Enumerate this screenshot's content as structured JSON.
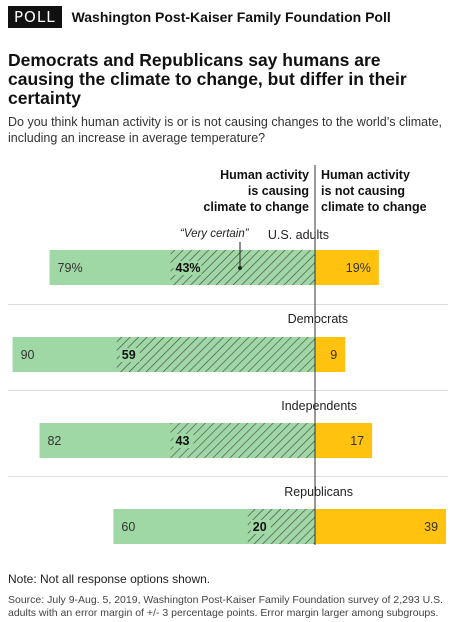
{
  "header": {
    "badge": "POLL",
    "source": "Washington Post-Kaiser Family Foundation Poll"
  },
  "title": "Democrats and Republicans say humans are causing the climate to change, but differ in their certainty",
  "subtitle": "Do you think human activity is or is not causing changes to the world’s climate, including an increase in average temperature?",
  "columns": {
    "left": [
      "Human activity",
      "is causing",
      "climate to change"
    ],
    "right": [
      "Human activity",
      "is not causing",
      "climate to change"
    ]
  },
  "annotation": "“Very certain”",
  "note": "Note: Not all response options shown.",
  "source_text": "Source: July 9-Aug. 5, 2019, Washington Post-Kaiser Family Foundation survey of 2,293 U.S. adults with an error margin of +/- 3 percentage points. Error margin larger among subgroups.",
  "colors": {
    "causing": "#9fd8a4",
    "very_certain_stroke": "#4a4a4a",
    "not_causing": "#ffc20e",
    "axis": "#333333"
  },
  "chart_data": {
    "type": "bar",
    "orientation": "horizontal diverging",
    "categories": [
      "U.S. adults",
      "Democrats",
      "Independents",
      "Republicans"
    ],
    "series": [
      {
        "name": "Human activity is causing climate to change",
        "values": [
          79,
          90,
          82,
          60
        ],
        "labels": [
          "79%",
          "90",
          "82",
          "60"
        ]
      },
      {
        "name": "“Very certain”",
        "values": [
          43,
          59,
          43,
          20
        ],
        "labels": [
          "43%",
          "59",
          "43",
          "20"
        ]
      },
      {
        "name": "Human activity is not causing climate to change",
        "values": [
          19,
          9,
          17,
          39
        ],
        "labels": [
          "19%",
          "9",
          "17",
          "39"
        ]
      }
    ]
  }
}
